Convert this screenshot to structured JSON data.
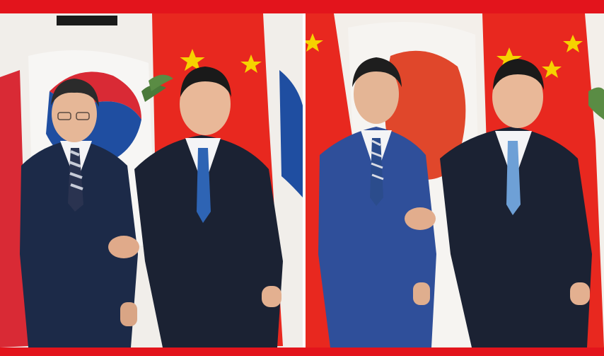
{
  "image": {
    "description_free": true,
    "colors": {
      "frame_red": "#e3141c",
      "china_flag_red": "#e8281f",
      "china_star_yellow": "#f6d200",
      "korea_red": "#d92a35",
      "korea_blue": "#1f4ea1",
      "japan_red": "#e0472b",
      "suit_dark": "#1b2233",
      "suit_navy": "#1c2a48",
      "suit_blue": "#2f4f9a"
    },
    "panels": [
      {
        "name": "left-panel"
      },
      {
        "name": "right-panel"
      }
    ]
  }
}
